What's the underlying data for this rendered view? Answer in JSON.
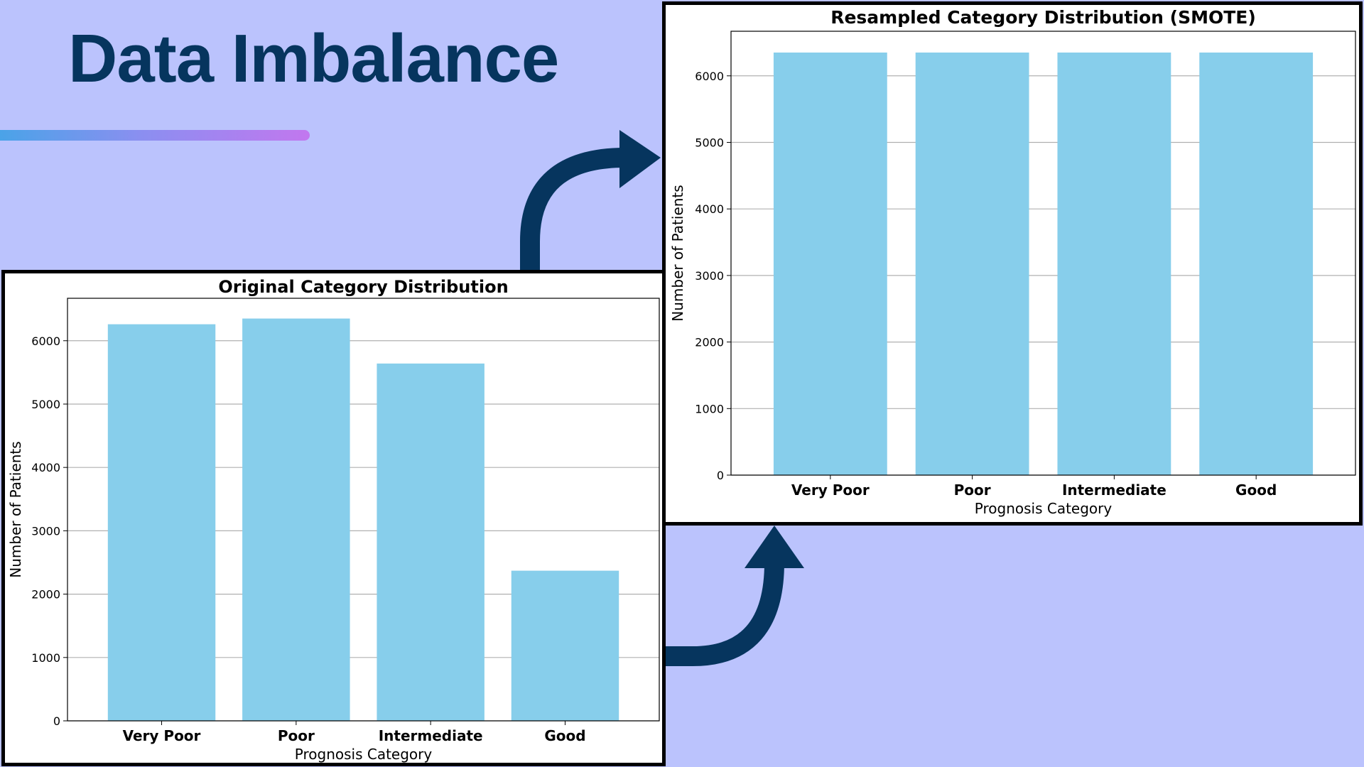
{
  "slide": {
    "title": "Data Imbalance"
  },
  "colors": {
    "background": "#bbc3fd",
    "title": "#06355e",
    "arrow": "#06355e",
    "bar": "#87ceeb",
    "grid": "#b0b0b0"
  },
  "chart_data": [
    {
      "type": "bar",
      "title": "Original Category Distribution",
      "xlabel": "Prognosis Category",
      "ylabel": "Number of Patients",
      "categories": [
        "Very Poor",
        "Poor",
        "Intermediate",
        "Good"
      ],
      "values": [
        6260,
        6350,
        5640,
        2370
      ],
      "ylim": [
        0,
        6670
      ],
      "yticks": [
        0,
        1000,
        2000,
        3000,
        4000,
        5000,
        6000
      ],
      "grid": "y",
      "bar_color": "#87ceeb"
    },
    {
      "type": "bar",
      "title": "Resampled Category Distribution (SMOTE)",
      "xlabel": "Prognosis Category",
      "ylabel": "Number of Patients",
      "categories": [
        "Very Poor",
        "Poor",
        "Intermediate",
        "Good"
      ],
      "values": [
        6350,
        6350,
        6350,
        6350
      ],
      "ylim": [
        0,
        6670
      ],
      "yticks": [
        0,
        1000,
        2000,
        3000,
        4000,
        5000,
        6000
      ],
      "grid": "y",
      "bar_color": "#87ceeb"
    }
  ]
}
